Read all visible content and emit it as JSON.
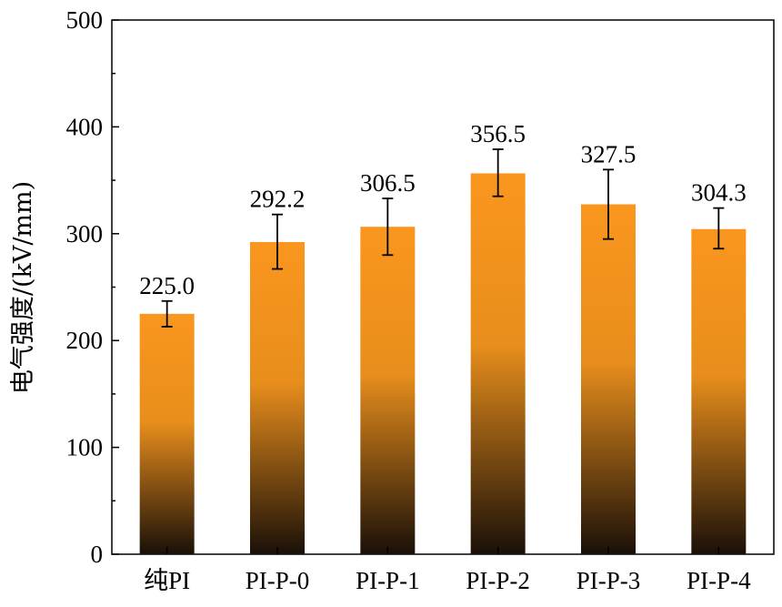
{
  "chart_data": {
    "type": "bar",
    "title": "",
    "xlabel": "",
    "ylabel": "电气强度/(kV/mm)",
    "categories": [
      "纯PI",
      "PI-P-0",
      "PI-P-1",
      "PI-P-2",
      "PI-P-3",
      "PI-P-4"
    ],
    "values": [
      225.0,
      292.2,
      306.5,
      356.5,
      327.5,
      304.3
    ],
    "value_labels": [
      "225.0",
      "292.2",
      "306.5",
      "356.5",
      "327.5",
      "304.3"
    ],
    "error_bars": [
      {
        "low": 213,
        "high": 237
      },
      {
        "low": 267,
        "high": 318
      },
      {
        "low": 280,
        "high": 333
      },
      {
        "low": 335,
        "high": 379
      },
      {
        "low": 295,
        "high": 360
      },
      {
        "low": 286,
        "high": 324
      }
    ],
    "ylim": [
      0,
      500
    ],
    "yticks": [
      0,
      100,
      200,
      300,
      400,
      500
    ],
    "ytick_labels": [
      "0",
      "100",
      "200",
      "300",
      "400",
      "500"
    ],
    "grid": false,
    "legend": "none",
    "colors": {
      "bar_top": "#FA961E",
      "bar_mid": "#E88E1C",
      "bar_bottom": "#1A1008",
      "axis": "#000000"
    }
  }
}
